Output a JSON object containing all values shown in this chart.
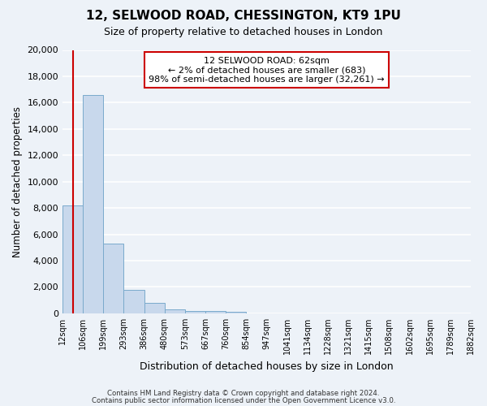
{
  "title": "12, SELWOOD ROAD, CHESSINGTON, KT9 1PU",
  "subtitle": "Size of property relative to detached houses in London",
  "xlabel": "Distribution of detached houses by size in London",
  "ylabel": "Number of detached properties",
  "bar_color": "#c8d8ec",
  "bar_edge_color": "#7aaacc",
  "bar_values": [
    8200,
    16600,
    5300,
    1800,
    800,
    300,
    200,
    150,
    100,
    0,
    0,
    0,
    0,
    0,
    0,
    0,
    0,
    0,
    0,
    0
  ],
  "x_labels": [
    "12sqm",
    "106sqm",
    "199sqm",
    "293sqm",
    "386sqm",
    "480sqm",
    "573sqm",
    "667sqm",
    "760sqm",
    "854sqm",
    "947sqm",
    "1041sqm",
    "1134sqm",
    "1228sqm",
    "1321sqm",
    "1415sqm",
    "1508sqm",
    "1602sqm",
    "1695sqm",
    "1789sqm",
    "1882sqm"
  ],
  "ylim": [
    0,
    20000
  ],
  "yticks": [
    0,
    2000,
    4000,
    6000,
    8000,
    10000,
    12000,
    14000,
    16000,
    18000,
    20000
  ],
  "property_line_x": 0.535,
  "annotation_title": "12 SELWOOD ROAD: 62sqm",
  "annotation_line1": "← 2% of detached houses are smaller (683)",
  "annotation_line2": "98% of semi-detached houses are larger (32,261) →",
  "annotation_box_color": "#ffffff",
  "annotation_border_color": "#cc0000",
  "vertical_line_color": "#cc0000",
  "footer_line1": "Contains HM Land Registry data © Crown copyright and database right 2024.",
  "footer_line2": "Contains public sector information licensed under the Open Government Licence v3.0.",
  "background_color": "#edf2f8",
  "plot_background_color": "#edf2f8",
  "grid_color": "#ffffff"
}
